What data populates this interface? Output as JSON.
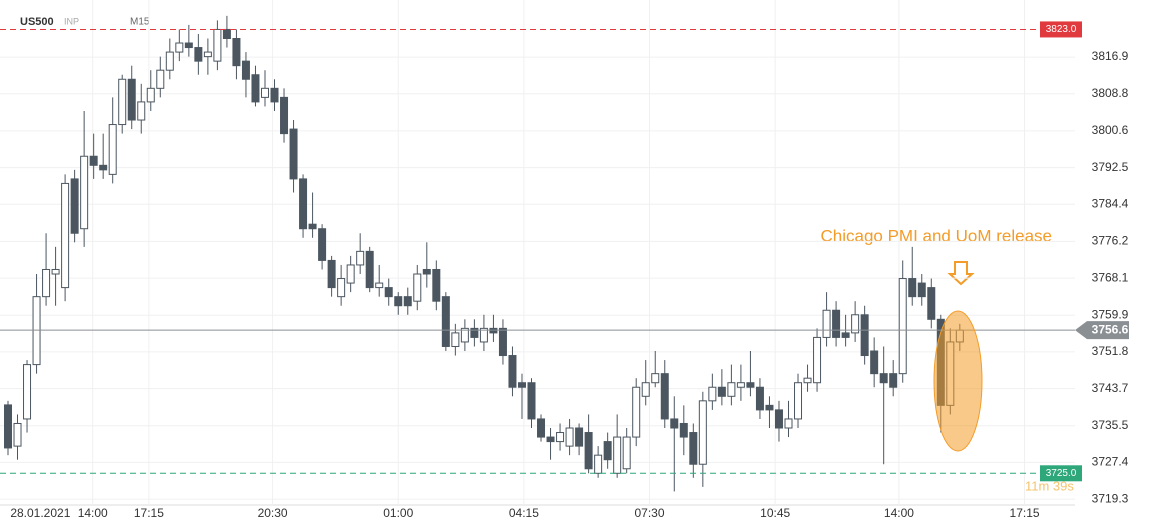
{
  "chart_data": {
    "type": "candlestick",
    "symbol": "US500",
    "source": "INP",
    "timeframe": "M15",
    "annotation": "Chicago PMI and UoM release",
    "countdown": "11m 39s",
    "bull_color": "#ffffff",
    "bear_color": "#4b5660",
    "grid": true,
    "ylim": [
      3718.0,
      3829.5
    ],
    "yticks": [
      3816.9,
      3808.8,
      3800.6,
      3792.5,
      3784.4,
      3776.2,
      3768.1,
      3759.9,
      3751.8,
      3743.7,
      3735.5,
      3727.4,
      3719.3
    ],
    "xlim": [
      -0.84,
      112.1
    ],
    "xticks": [
      {
        "value": 3.4,
        "label": "28.01.2021"
      },
      {
        "value": 8.9,
        "label": "14:00"
      },
      {
        "value": 14.8,
        "label": "17:15"
      },
      {
        "value": 27.8,
        "label": "20:30"
      },
      {
        "value": 41,
        "label": "01:00"
      },
      {
        "value": 54.2,
        "label": "04:15"
      },
      {
        "value": 67.4,
        "label": "07:30"
      },
      {
        "value": 80.6,
        "label": "10:45"
      },
      {
        "value": 93.6,
        "label": "14:00"
      },
      {
        "value": 106.8,
        "label": "17:15"
      }
    ],
    "price_lines": [
      {
        "value": 3823.0,
        "label": "3823.0",
        "color": "#e0393e",
        "dashed": true
      },
      {
        "value": 3725.0,
        "label": "3725.0",
        "color": "#2ea77a",
        "dashed": true
      },
      {
        "value": 3756.6,
        "label": "3756.6",
        "color": "#8a8f94",
        "dashed": false
      }
    ],
    "open": [
      3740.1,
      3731,
      3737,
      3749,
      3764,
      3769,
      3766,
      3790,
      3779,
      3795,
      3793,
      3791,
      3802,
      3812,
      3803,
      3807,
      3810,
      3814,
      3818,
      3820,
      3819,
      3817,
      3816,
      3823,
      3821,
      3816,
      3813,
      3808,
      3810,
      3808,
      3801,
      3790,
      3780,
      3779,
      3772,
      3764,
      3767,
      3771,
      3774,
      3766,
      3766,
      3764,
      3764,
      3763,
      3770,
      3770,
      3764,
      3753,
      3754,
      3757,
      3754,
      3757,
      3757,
      3751,
      3745,
      3745,
      3737,
      3733,
      3732,
      3731,
      3735,
      3734,
      3725,
      3732,
      3725,
      3726,
      3733,
      3742,
      3745,
      3747,
      3737,
      3736,
      3734,
      3727,
      3741,
      3744,
      3742,
      3744,
      3745,
      3744,
      3740,
      3739,
      3735,
      3737,
      3745,
      3745,
      3755,
      3761,
      3756,
      3756,
      3760,
      3752,
      3747,
      3747,
      3747,
      3768,
      3767,
      3766,
      3759,
      3740,
      3754
    ],
    "high": [
      3741,
      3738,
      3750,
      3769,
      3778,
      3775,
      3791,
      3792,
      3805,
      3800,
      3800,
      3808,
      3813,
      3815,
      3811,
      3814,
      3817,
      3821,
      3823,
      3824,
      3822,
      3821,
      3825,
      3826,
      3823,
      3818,
      3815,
      3814,
      3812,
      3810,
      3803,
      3791,
      3787,
      3780,
      3773,
      3771,
      3773,
      3778,
      3775,
      3771,
      3768,
      3765,
      3766,
      3771,
      3776,
      3772,
      3765,
      3758,
      3759,
      3759,
      3760,
      3760,
      3759,
      3753,
      3747,
      3746,
      3738,
      3735,
      3736,
      3737,
      3736,
      3738,
      3731,
      3734,
      3738,
      3735,
      3746,
      3750,
      3752,
      3750,
      3742,
      3740,
      3736,
      3743,
      3747,
      3748,
      3749,
      3749,
      3752,
      3746,
      3742,
      3741,
      3741,
      3747,
      3749,
      3757,
      3765,
      3763,
      3760,
      3763,
      3762,
      3755,
      3753,
      3750,
      3772,
      3775,
      3769,
      3768,
      3760,
      3757,
      3758
    ],
    "low": [
      3729,
      3728,
      3734,
      3747,
      3762,
      3762,
      3763,
      3776,
      3775,
      3790,
      3790,
      3789,
      3800,
      3801,
      3800,
      3805,
      3808,
      3812,
      3816,
      3817,
      3813,
      3813,
      3814,
      3819,
      3812,
      3808,
      3806,
      3806,
      3805,
      3798,
      3787,
      3777,
      3777,
      3770,
      3764,
      3762,
      3765,
      3769,
      3765,
      3764,
      3762,
      3760,
      3760,
      3761,
      3766,
      3761,
      3752,
      3751,
      3752,
      3753,
      3752,
      3754,
      3749,
      3742,
      3737,
      3735,
      3732,
      3728,
      3730,
      3729,
      3729,
      3725,
      3724,
      3726,
      3724,
      3725,
      3731,
      3740,
      3744,
      3735,
      3721,
      3729,
      3724,
      3722,
      3739,
      3740,
      3740,
      3741,
      3742,
      3737,
      3735,
      3732,
      3733,
      3735,
      3743,
      3743,
      3753,
      3753,
      3753,
      3754,
      3749,
      3744,
      3727,
      3742,
      3745,
      3762,
      3762,
      3757,
      3734,
      3738,
      3752
    ],
    "close": [
      3730.6,
      3736,
      3749,
      3764,
      3770,
      3770,
      3789,
      3778,
      3795,
      3793,
      3792,
      3802,
      3812,
      3803,
      3807,
      3810,
      3814,
      3818,
      3820,
      3819,
      3816,
      3818,
      3823,
      3821,
      3815,
      3812,
      3807,
      3810,
      3807,
      3800,
      3790,
      3779,
      3779,
      3772,
      3766,
      3768,
      3771,
      3774,
      3766,
      3767,
      3764,
      3762,
      3762,
      3769,
      3769,
      3763,
      3753,
      3756,
      3757,
      3755,
      3757,
      3756,
      3751,
      3744,
      3744,
      3737,
      3733,
      3732,
      3734,
      3735,
      3731,
      3726,
      3729,
      3728,
      3733,
      3733,
      3744,
      3745,
      3747,
      3737,
      3735,
      3733,
      3727,
      3741,
      3744,
      3742,
      3745,
      3745,
      3744,
      3739,
      3739,
      3735,
      3737,
      3745,
      3746,
      3755,
      3761,
      3755,
      3755,
      3760,
      3751,
      3747,
      3745,
      3744,
      3768,
      3764,
      3764,
      3759,
      3740,
      3754,
      3756.6
    ]
  }
}
